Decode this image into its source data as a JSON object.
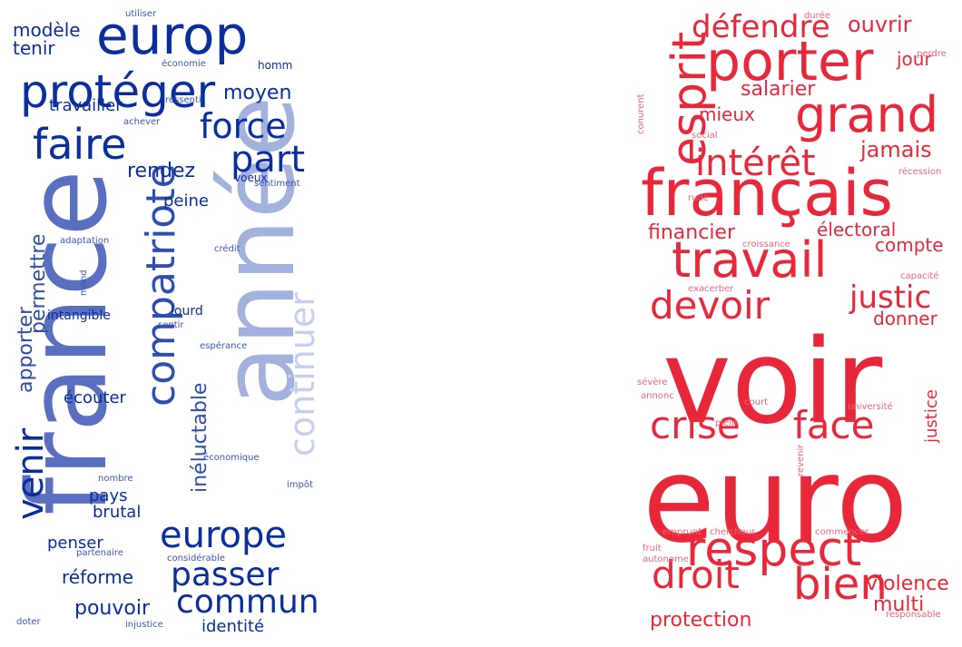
{
  "clouds": [
    {
      "id": "left",
      "words": [
        {
          "t": "france",
          "c": "#5b6fc0"
        },
        {
          "t": "année",
          "c": "#a3b1dd"
        },
        {
          "t": "europ",
          "c": "#0a2e9c"
        },
        {
          "t": "protéger",
          "c": "#0a2e9c"
        },
        {
          "t": "faire",
          "c": "#0a2e9c"
        },
        {
          "t": "force",
          "c": "#0a2e9c"
        },
        {
          "t": "part",
          "c": "#0a2e9c"
        },
        {
          "t": "europe",
          "c": "#0a2e9c"
        },
        {
          "t": "passer",
          "c": "#0a2e9c"
        },
        {
          "t": "commun",
          "c": "#0a2e9c"
        },
        {
          "t": "compatriote",
          "c": "#2e4db0"
        },
        {
          "t": "continuer",
          "c": "#c7d0ea"
        },
        {
          "t": "venir",
          "c": "#0a2e9c"
        },
        {
          "t": "moyen",
          "c": "#0a2e9c"
        },
        {
          "t": "modèle",
          "c": "#0a2e9c"
        },
        {
          "t": "tenir",
          "c": "#0a2e9c"
        },
        {
          "t": "travailler",
          "c": "#0a2e9c"
        },
        {
          "t": "rendez",
          "c": "#0a2e9c"
        },
        {
          "t": "peine",
          "c": "#0a2e9c"
        },
        {
          "t": "permettre",
          "c": "#2e4db0"
        },
        {
          "t": "apporter",
          "c": "#2e4db0"
        },
        {
          "t": "inéluctable",
          "c": "#2e4db0"
        },
        {
          "t": "écouter",
          "c": "#0a2e9c"
        },
        {
          "t": "pays",
          "c": "#0a2e9c"
        },
        {
          "t": "brutal",
          "c": "#0a2e9c"
        },
        {
          "t": "réforme",
          "c": "#0a2e9c"
        },
        {
          "t": "penser",
          "c": "#0a2e9c"
        },
        {
          "t": "pouvoir",
          "c": "#0a2e9c"
        },
        {
          "t": "identité",
          "c": "#0a2e9c"
        },
        {
          "t": "intangible",
          "c": "#0a2e9c"
        },
        {
          "t": "lourd",
          "c": "#0a2e9c"
        },
        {
          "t": "homm",
          "c": "#0a2e9c"
        },
        {
          "t": "voeux",
          "c": "#0a2e9c"
        },
        {
          "t": "utiliser",
          "c": "#3a56b8"
        },
        {
          "t": "économie",
          "c": "#3a56b8"
        },
        {
          "t": "ressenti",
          "c": "#3a56b8"
        },
        {
          "t": "achever",
          "c": "#3a56b8"
        },
        {
          "t": "sentiment",
          "c": "#3a56b8"
        },
        {
          "t": "adaptation",
          "c": "#3a56b8"
        },
        {
          "t": "crédit",
          "c": "#3a56b8"
        },
        {
          "t": "mond",
          "c": "#3a56b8"
        },
        {
          "t": "sentir",
          "c": "#3a56b8"
        },
        {
          "t": "espérance",
          "c": "#3a56b8"
        },
        {
          "t": "économique",
          "c": "#3a56b8"
        },
        {
          "t": "nombre",
          "c": "#3a56b8"
        },
        {
          "t": "impôt",
          "c": "#3a56b8"
        },
        {
          "t": "partenaire",
          "c": "#3a56b8"
        },
        {
          "t": "considérable",
          "c": "#3a56b8"
        },
        {
          "t": "doter",
          "c": "#3a56b8"
        },
        {
          "t": "injustice",
          "c": "#3a56b8"
        }
      ]
    },
    {
      "id": "right",
      "words": [
        {
          "t": "voir",
          "c": "#e8283a"
        },
        {
          "t": "euro",
          "c": "#e8283a"
        },
        {
          "t": "porter",
          "c": "#e8283a"
        },
        {
          "t": "grand",
          "c": "#e8283a"
        },
        {
          "t": "français",
          "c": "#e8283a"
        },
        {
          "t": "travail",
          "c": "#e8283a"
        },
        {
          "t": "esprit",
          "c": "#e8283a"
        },
        {
          "t": "respect",
          "c": "#e8283a"
        },
        {
          "t": "crise",
          "c": "#e8283a"
        },
        {
          "t": "face",
          "c": "#e8283a"
        },
        {
          "t": "droit",
          "c": "#e8283a"
        },
        {
          "t": "bien",
          "c": "#e8283a"
        },
        {
          "t": "devoir",
          "c": "#e8283a"
        },
        {
          "t": "intérêt",
          "c": "#e8283a"
        },
        {
          "t": "défendre",
          "c": "#e8283a"
        },
        {
          "t": "ouvrir",
          "c": "#e8283a"
        },
        {
          "t": "jour",
          "c": "#e8283a"
        },
        {
          "t": "salarier",
          "c": "#e8283a"
        },
        {
          "t": "mieux",
          "c": "#e8283a"
        },
        {
          "t": "jamais",
          "c": "#e8283a"
        },
        {
          "t": "financier",
          "c": "#e8283a"
        },
        {
          "t": "électoral",
          "c": "#e8283a"
        },
        {
          "t": "compte",
          "c": "#e8283a"
        },
        {
          "t": "justic",
          "c": "#e8283a"
        },
        {
          "t": "donner",
          "c": "#e8283a"
        },
        {
          "t": "justice",
          "c": "#e8283a"
        },
        {
          "t": "violence",
          "c": "#e8283a"
        },
        {
          "t": "multi",
          "c": "#e8283a"
        },
        {
          "t": "protection",
          "c": "#e8283a"
        },
        {
          "t": "durée",
          "c": "#f06575"
        },
        {
          "t": "perdre",
          "c": "#f06575"
        },
        {
          "t": "conurent",
          "c": "#f06575"
        },
        {
          "t": "social",
          "c": "#f06575"
        },
        {
          "t": "récession",
          "c": "#f06575"
        },
        {
          "t": "rude",
          "c": "#f06575"
        },
        {
          "t": "croissance",
          "c": "#f06575"
        },
        {
          "t": "capacité",
          "c": "#f06575"
        },
        {
          "t": "exacerber",
          "c": "#f06575"
        },
        {
          "t": "sévère",
          "c": "#f06575"
        },
        {
          "t": "annonc",
          "c": "#f06575"
        },
        {
          "t": "court",
          "c": "#f06575"
        },
        {
          "t": "université",
          "c": "#f06575"
        },
        {
          "t": "plein",
          "c": "#f06575"
        },
        {
          "t": "revenir",
          "c": "#f06575"
        },
        {
          "t": "emprunt",
          "c": "#f06575"
        },
        {
          "t": "chercheur",
          "c": "#f06575"
        },
        {
          "t": "commencer",
          "c": "#f06575"
        },
        {
          "t": "fruit",
          "c": "#f06575"
        },
        {
          "t": "autonome",
          "c": "#f06575"
        },
        {
          "t": "responsable",
          "c": "#f06575"
        }
      ]
    }
  ]
}
